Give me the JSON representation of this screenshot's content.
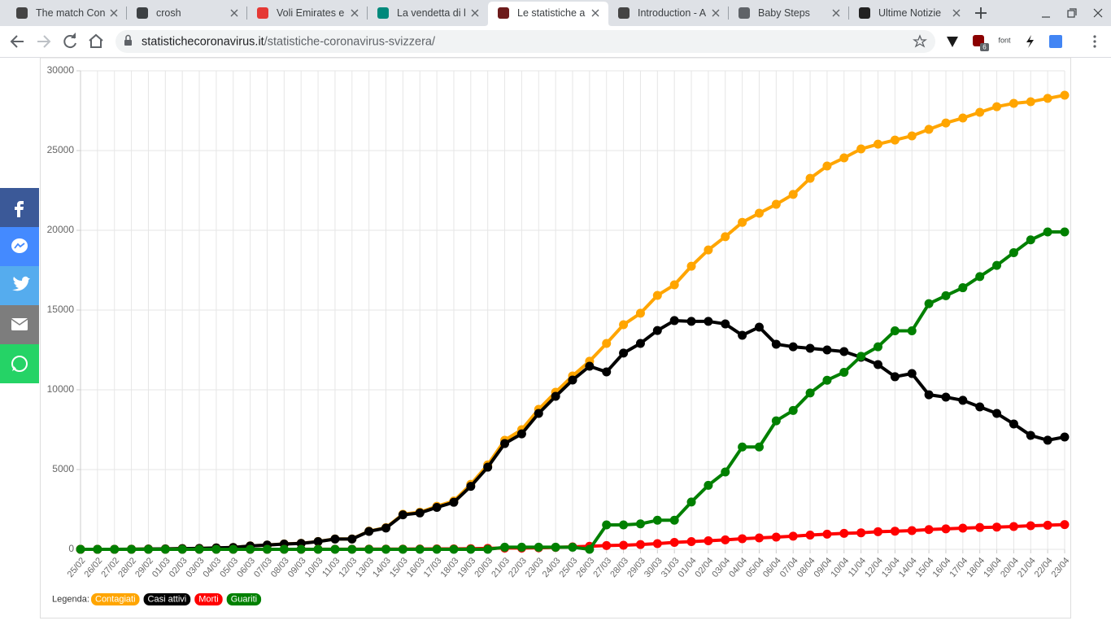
{
  "browser": {
    "tabs": [
      "The match Con",
      "crosh",
      "Voli Emirates e",
      "La vendetta di l",
      "Le statistiche a",
      "Introduction - A",
      "Baby Steps",
      "Ultime Notizie"
    ],
    "active_tab": 4,
    "url_domain": "statistichecoronavirus.it",
    "url_path": "/statistiche-coronavirus-svizzera/",
    "extension_label": "font",
    "extension_badge": "6"
  },
  "chart_data": {
    "type": "line",
    "categories": [
      "25/02",
      "26/02",
      "27/02",
      "28/02",
      "29/02",
      "01/03",
      "02/03",
      "03/03",
      "04/03",
      "05/03",
      "06/03",
      "07/03",
      "08/03",
      "09/03",
      "10/03",
      "11/03",
      "12/03",
      "13/03",
      "14/03",
      "15/03",
      "16/03",
      "17/03",
      "18/03",
      "19/03",
      "20/03",
      "21/03",
      "22/03",
      "23/03",
      "24/03",
      "25/03",
      "26/03",
      "27/03",
      "28/03",
      "29/03",
      "30/03",
      "31/03",
      "01/04",
      "02/04",
      "03/04",
      "04/04",
      "05/04",
      "06/04",
      "07/04",
      "08/04",
      "09/04",
      "10/04",
      "11/04",
      "12/04",
      "13/04",
      "14/04",
      "15/04",
      "16/04",
      "17/04",
      "18/04",
      "19/04",
      "20/04",
      "21/04",
      "22/04",
      "23/04"
    ],
    "series": [
      {
        "name": "Contagiati",
        "color": "#ffa500",
        "values": [
          0,
          1,
          1,
          8,
          18,
          24,
          42,
          56,
          90,
          114,
          214,
          268,
          337,
          374,
          491,
          652,
          652,
          1139,
          1359,
          2200,
          2330,
          2700,
          3028,
          4075,
          5294,
          6837,
          7500,
          8775,
          9850,
          10870,
          11790,
          12910,
          14080,
          14800,
          15920,
          16580,
          17750,
          18770,
          19600,
          20500,
          21070,
          21630,
          22250,
          23260,
          24030,
          24540,
          25100,
          25400,
          25660,
          25920,
          26330,
          26730,
          27040,
          27400,
          27750,
          27960,
          28060,
          28270,
          28470
        ]
      },
      {
        "name": "Casi attivi",
        "color": "#000000",
        "values": [
          0,
          1,
          1,
          8,
          18,
          24,
          42,
          56,
          90,
          113,
          212,
          265,
          333,
          368,
          485,
          644,
          644,
          1124,
          1333,
          2160,
          2280,
          2630,
          2950,
          3950,
          5150,
          6630,
          7240,
          8520,
          9590,
          10610,
          11480,
          11120,
          12300,
          12910,
          13720,
          14340,
          14290,
          14290,
          14130,
          13420,
          13930,
          12860,
          12700,
          12600,
          12500,
          12400,
          12040,
          11580,
          10820,
          11020,
          9690,
          9540,
          9340,
          8930,
          8520,
          7860,
          7140,
          6840,
          7040
        ]
      },
      {
        "name": "Morti",
        "color": "#ff0000",
        "values": [
          0,
          0,
          0,
          0,
          0,
          0,
          0,
          0,
          0,
          1,
          1,
          2,
          2,
          2,
          4,
          4,
          4,
          11,
          13,
          14,
          19,
          27,
          28,
          41,
          56,
          80,
          80,
          98,
          120,
          153,
          191,
          235,
          257,
          300,
          359,
          433,
          485,
          536,
          591,
          666,
          715,
          765,
          821,
          895,
          948,
          1002,
          1036,
          1106,
          1138,
          1174,
          1239,
          1281,
          1327,
          1368,
          1393,
          1429,
          1478,
          1509,
          1549
        ]
      },
      {
        "name": "Guariti",
        "color": "#008000",
        "values": [
          0,
          0,
          0,
          0,
          0,
          0,
          0,
          0,
          0,
          0,
          0,
          0,
          0,
          0,
          0,
          0,
          0,
          0,
          0,
          0,
          0,
          0,
          0,
          0,
          0,
          131,
          131,
          131,
          131,
          131,
          0,
          1530,
          1530,
          1595,
          1823,
          1823,
          2967,
          4013,
          4846,
          6415,
          6415,
          8056,
          8704,
          9800,
          10600,
          11100,
          12100,
          12700,
          13700,
          13700,
          15400,
          15900,
          16400,
          17100,
          17800,
          18600,
          19400,
          19900,
          19900
        ]
      }
    ],
    "ylim": [
      0,
      30000
    ],
    "yticks": [
      0,
      5000,
      10000,
      15000,
      20000,
      25000,
      30000
    ],
    "grid": true,
    "legend_title": "Legenda:"
  }
}
